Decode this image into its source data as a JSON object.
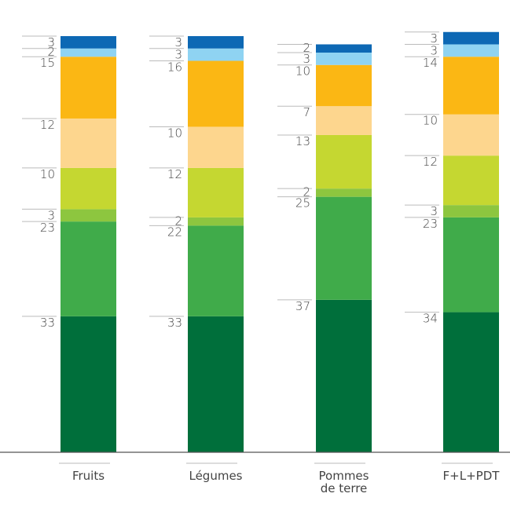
{
  "chart_data": {
    "type": "bar",
    "stacked": true,
    "categories": [
      "Fruits",
      "Légumes",
      "Pommes de terre",
      "F+L+PDT"
    ],
    "category_lines": [
      [
        "Fruits"
      ],
      [
        "Légumes"
      ],
      [
        "Pommes",
        "de terre"
      ],
      [
        "F+L+PDT"
      ]
    ],
    "series": [
      {
        "color": "#006f3b",
        "values": [
          33,
          33,
          37,
          34
        ]
      },
      {
        "color": "#40ab4a",
        "values": [
          23,
          22,
          25,
          23
        ]
      },
      {
        "color": "#8dc63f",
        "values": [
          3,
          2,
          2,
          3
        ]
      },
      {
        "color": "#c5d731",
        "values": [
          10,
          12,
          13,
          12
        ]
      },
      {
        "color": "#fdd68e",
        "values": [
          12,
          10,
          7,
          10
        ]
      },
      {
        "color": "#fbb714",
        "values": [
          15,
          16,
          10,
          14
        ]
      },
      {
        "color": "#8fd3f2",
        "values": [
          2,
          3,
          3,
          3
        ]
      },
      {
        "color": "#0d68b4",
        "values": [
          3,
          3,
          2,
          3
        ]
      }
    ],
    "ylim": [
      0,
      101
    ],
    "grid": false,
    "legend": "none"
  }
}
